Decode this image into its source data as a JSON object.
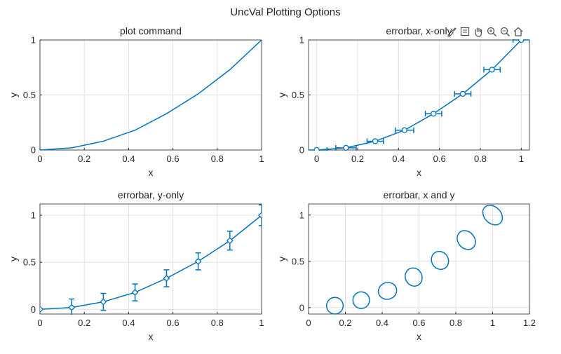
{
  "figure": {
    "title": "UncVal Plotting Options"
  },
  "toolbar": {
    "icons": [
      "brush-icon",
      "datatip-icon",
      "pan-hand-icon",
      "zoom-in-icon",
      "zoom-out-icon",
      "home-icon"
    ]
  },
  "colors": {
    "line": "#0072BD",
    "axis": "#262626",
    "grid": "#dfdfdf",
    "text": "#262626"
  },
  "chart_data": [
    {
      "type": "line",
      "title": "plot command",
      "xlabel": "x",
      "ylabel": "y",
      "xlim": [
        0,
        1
      ],
      "ylim": [
        0,
        1
      ],
      "xticks": [
        0,
        0.2,
        0.4,
        0.6,
        0.8,
        1
      ],
      "yticks": [
        0,
        0.5,
        1
      ],
      "grid": true,
      "x": [
        0,
        0.143,
        0.286,
        0.429,
        0.571,
        0.714,
        0.857,
        1
      ],
      "y": [
        0,
        0.02,
        0.08,
        0.18,
        0.33,
        0.51,
        0.73,
        1
      ],
      "marker": "none"
    },
    {
      "type": "scatter",
      "title": "errorbar, x-only",
      "xlabel": "x",
      "ylabel": "y",
      "xlim": [
        -0.04,
        1.04
      ],
      "ylim": [
        0,
        1
      ],
      "xticks": [
        0,
        0.2,
        0.4,
        0.6,
        0.8,
        1
      ],
      "yticks": [
        0,
        0.5,
        1
      ],
      "grid": true,
      "x": [
        0,
        0.143,
        0.286,
        0.429,
        0.571,
        0.714,
        0.857,
        1
      ],
      "y": [
        0,
        0.02,
        0.08,
        0.18,
        0.33,
        0.51,
        0.73,
        1
      ],
      "xerr": [
        0.05,
        0.05,
        0.04,
        0.045,
        0.04,
        0.04,
        0.04,
        0.04
      ],
      "marker": "circle"
    },
    {
      "type": "scatter",
      "title": "errorbar, y-only",
      "xlabel": "x",
      "ylabel": "y",
      "xlim": [
        0,
        1
      ],
      "ylim": [
        -0.05,
        1.12
      ],
      "xticks": [
        0,
        0.2,
        0.4,
        0.6,
        0.8,
        1
      ],
      "yticks": [
        0,
        0.5,
        1
      ],
      "grid": true,
      "x": [
        0,
        0.143,
        0.286,
        0.429,
        0.571,
        0.714,
        0.857,
        1
      ],
      "y": [
        0,
        0.02,
        0.08,
        0.18,
        0.33,
        0.51,
        0.73,
        1
      ],
      "yerr": [
        0,
        0.09,
        0.09,
        0.09,
        0.09,
        0.09,
        0.1,
        0.11
      ],
      "marker": "diamond"
    },
    {
      "type": "scatter",
      "title": "errorbar, x and y",
      "xlabel": "x",
      "ylabel": "y",
      "xlim": [
        0,
        1.2
      ],
      "ylim": [
        -0.07,
        1.12
      ],
      "xticks": [
        0,
        0.2,
        0.4,
        0.6,
        0.8,
        1,
        1.2
      ],
      "yticks": [
        0,
        0.5,
        1
      ],
      "grid": true,
      "x": [
        0.143,
        0.286,
        0.429,
        0.571,
        0.714,
        0.857,
        1
      ],
      "y": [
        0.02,
        0.08,
        0.18,
        0.33,
        0.51,
        0.73,
        1
      ],
      "xerr": [
        0.045,
        0.045,
        0.05,
        0.045,
        0.045,
        0.045,
        0.045
      ],
      "yerr": [
        0.09,
        0.09,
        0.09,
        0.1,
        0.1,
        0.11,
        0.12
      ],
      "marker": "ellipse",
      "tilt": [
        0,
        0.6,
        1.0,
        1.4,
        1.8,
        2.2,
        2.5
      ]
    }
  ]
}
